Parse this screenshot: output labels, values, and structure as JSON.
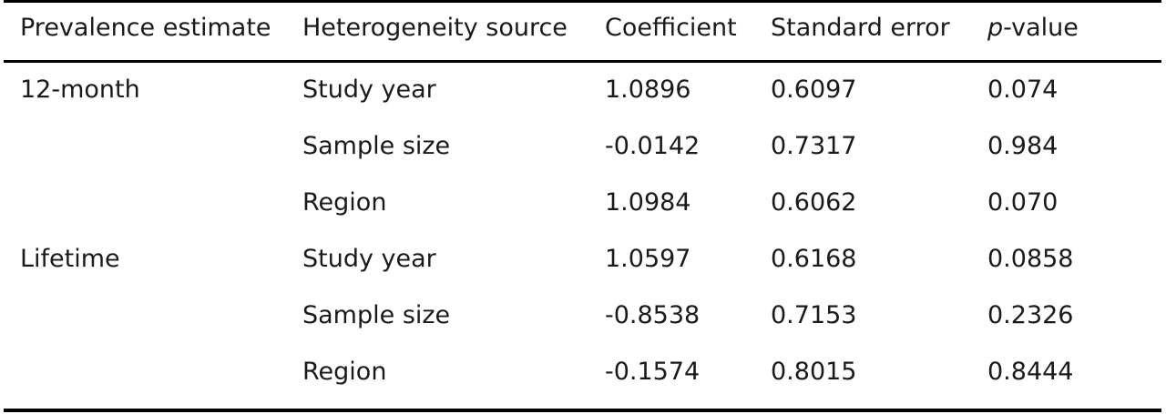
{
  "table": {
    "headers": {
      "prevalence": "Prevalence estimate",
      "source": "Heterogeneity source",
      "coefficient": "Coefficient",
      "se": "Standard error",
      "p_italic": "p",
      "p_rest": "-value"
    },
    "rows": [
      {
        "prevalence": "12-month",
        "source": "Study year",
        "coefficient": "1.0896",
        "se": "0.6097",
        "p": "0.074"
      },
      {
        "prevalence": "",
        "source": "Sample size",
        "coefficient": "-0.0142",
        "se": "0.7317",
        "p": "0.984"
      },
      {
        "prevalence": "",
        "source": "Region",
        "coefficient": "1.0984",
        "se": "0.6062",
        "p": "0.070"
      },
      {
        "prevalence": "Lifetime",
        "source": "Study year",
        "coefficient": "1.0597",
        "se": "0.6168",
        "p": "0.0858"
      },
      {
        "prevalence": "",
        "source": "Sample size",
        "coefficient": "-0.8538",
        "se": "0.7153",
        "p": "0.2326"
      },
      {
        "prevalence": "",
        "source": "Region",
        "coefficient": "-0.1574",
        "se": "0.8015",
        "p": "0.8444"
      }
    ]
  }
}
